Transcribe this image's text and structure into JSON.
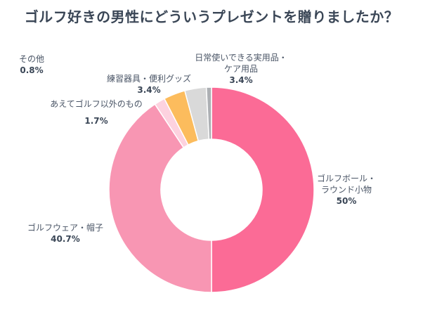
{
  "chart_data": {
    "type": "pie",
    "donut": true,
    "title": "ゴルフ好きの男性にどういうプレゼントを贈りましたか？",
    "slices": [
      {
        "label_lines": [
          "ゴルフボール・",
          "ラウンド小物"
        ],
        "value": 50,
        "value_label": "50%",
        "color": "#fb6b96"
      },
      {
        "label_lines": [
          "ゴルフウェア・帽子"
        ],
        "value": 40.7,
        "value_label": "40.7%",
        "color": "#f896b3"
      },
      {
        "label_lines": [
          "あえてゴルフ以外のもの"
        ],
        "value": 1.7,
        "value_label": "1.7%",
        "color": "#fdd2df"
      },
      {
        "label_lines": [
          "練習器具・便利グッズ"
        ],
        "value": 3.4,
        "value_label": "3.4%",
        "color": "#fcbc5d"
      },
      {
        "label_lines": [
          "日常使いできる実用品・",
          "ケア用品"
        ],
        "value": 3.4,
        "value_label": "3.4%",
        "color": "#d9d9d9"
      },
      {
        "label_lines": [
          "その他"
        ],
        "value": 0.8,
        "value_label": "0.8%",
        "color": "#adb0b4"
      }
    ]
  }
}
